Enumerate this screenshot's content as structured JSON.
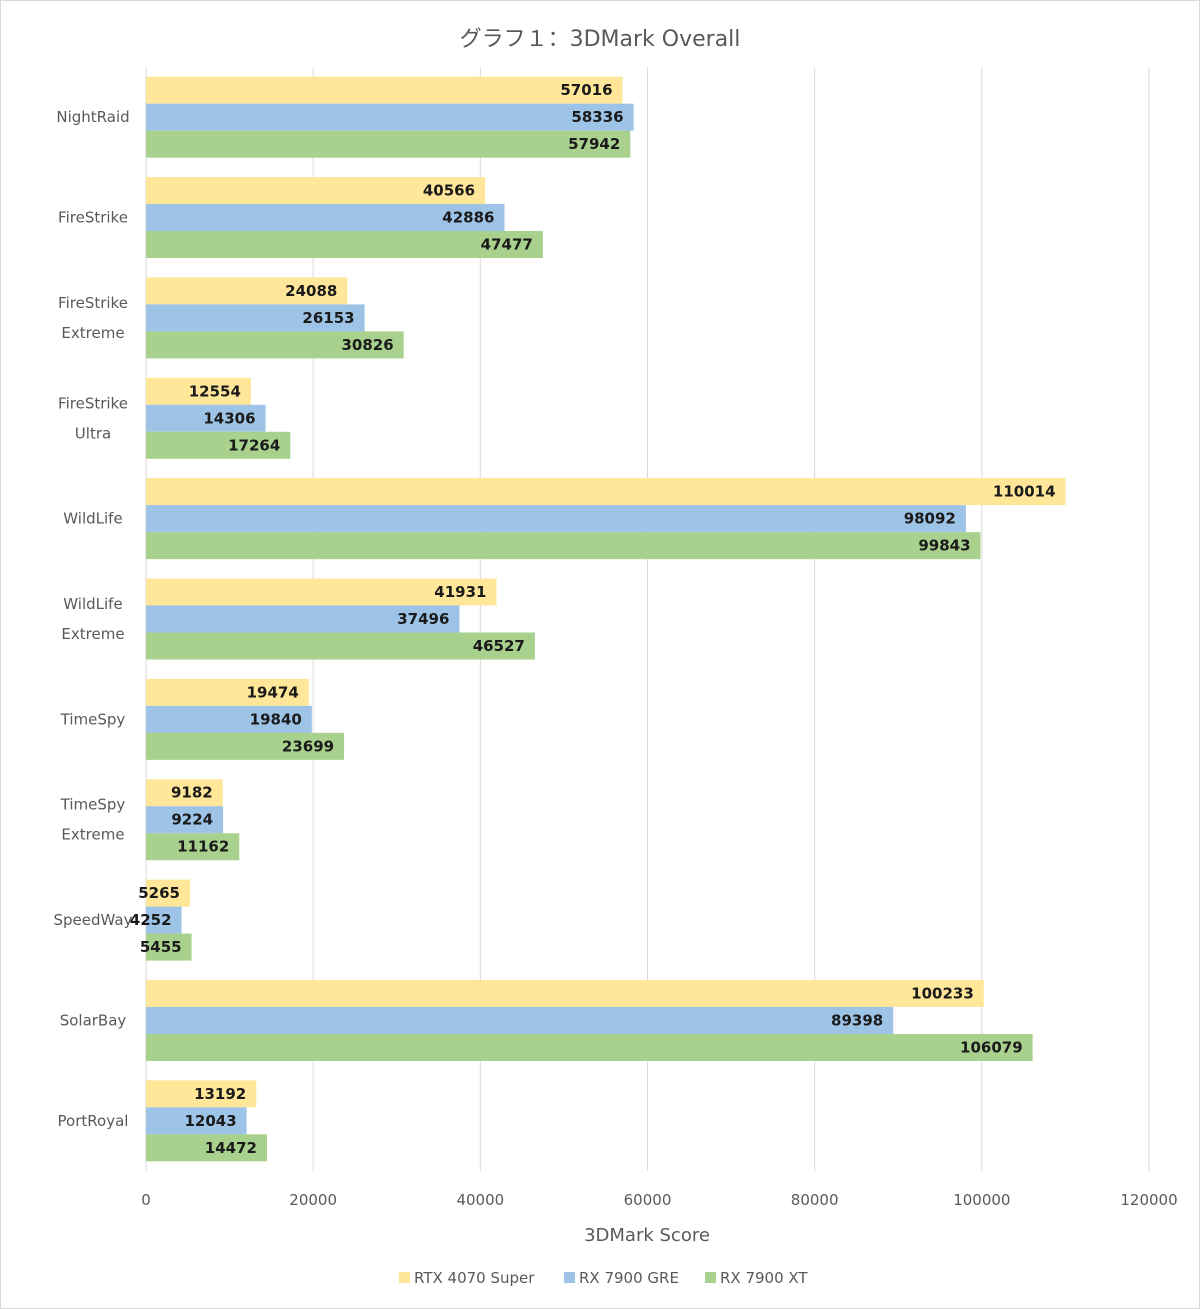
{
  "chart_data": {
    "type": "bar",
    "orientation": "horizontal",
    "title": "グラフ１：3DMark Overall",
    "xlabel": "3DMark Score",
    "ylabel": "",
    "xlim": [
      0,
      120000
    ],
    "x_ticks": [
      0,
      20000,
      40000,
      60000,
      80000,
      100000,
      120000
    ],
    "grid": "vertical",
    "legend_position": "bottom",
    "categories": [
      [
        "NightRaid"
      ],
      [
        "FireStrike"
      ],
      [
        "FireStrike",
        "Extreme"
      ],
      [
        "FireStrike",
        "Ultra"
      ],
      [
        "WildLife"
      ],
      [
        "WildLife",
        "Extreme"
      ],
      [
        "TimeSpy"
      ],
      [
        "TimeSpy",
        "Extreme"
      ],
      [
        "SpeedWay"
      ],
      [
        "SolarBay"
      ],
      [
        "PortRoyal"
      ]
    ],
    "series": [
      {
        "name": "RTX 4070 Super",
        "color": "#ffe699",
        "values": [
          57016,
          40566,
          24088,
          12554,
          110014,
          41931,
          19474,
          9182,
          5265,
          100233,
          13192
        ]
      },
      {
        "name": "RX 7900 GRE",
        "color": "#9dc3e6",
        "values": [
          58336,
          42886,
          26153,
          14306,
          98092,
          37496,
          19840,
          9224,
          4252,
          89398,
          12043
        ]
      },
      {
        "name": "RX 7900 XT",
        "color": "#a9d18e",
        "values": [
          57942,
          47477,
          30826,
          17264,
          99843,
          46527,
          23699,
          11162,
          5455,
          106079,
          14472
        ]
      }
    ]
  }
}
